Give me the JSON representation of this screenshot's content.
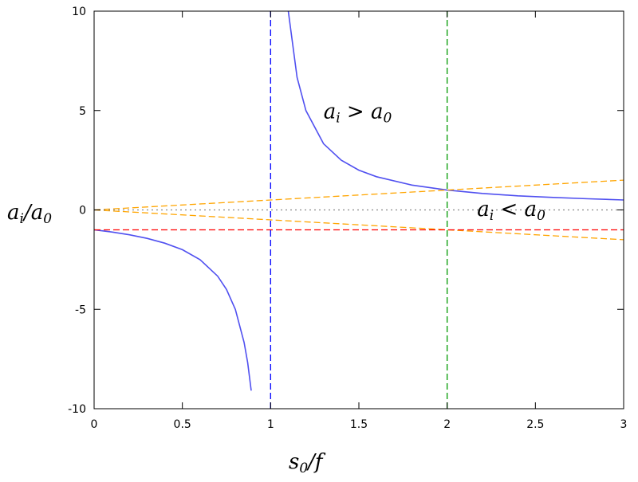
{
  "chart_data": {
    "type": "line",
    "xlim": [
      0,
      3
    ],
    "ylim": [
      -10,
      10
    ],
    "xticks": [
      0,
      0.5,
      1,
      1.5,
      2,
      2.5,
      3
    ],
    "yticks": [
      -10,
      -5,
      0,
      5,
      10
    ],
    "xtick_labels": [
      "0",
      "0.5",
      "1",
      "1.5",
      "2",
      "2.5",
      "3"
    ],
    "ytick_labels": [
      "-10",
      "-5",
      "0",
      "5",
      "10"
    ],
    "xlabel": {
      "base": "s",
      "sub": "0",
      "rest": "/f"
    },
    "ylabel": {
      "a": "a",
      "sub1": "i",
      "slash": "/a",
      "sub2": "0"
    },
    "grid": false,
    "legend": "none",
    "annotations": [
      {
        "base": "a",
        "sub": "i",
        "op": " > a",
        "sub2": "0",
        "x": 1.3,
        "y": 4.6
      },
      {
        "base": "a",
        "sub": "i",
        "op": " < a",
        "sub2": "0",
        "x": 2.17,
        "y": -0.3
      }
    ],
    "series": [
      {
        "style": "solid",
        "color": "#5050f0",
        "x": [
          0,
          0.1,
          0.2,
          0.3,
          0.4,
          0.5,
          0.6,
          0.7,
          0.75,
          0.8,
          0.85,
          0.87,
          0.89
        ],
        "y": [
          -1,
          -1.11,
          -1.25,
          -1.43,
          -1.67,
          -2,
          -2.5,
          -3.33,
          -4,
          -5,
          -6.67,
          -7.69,
          -9.09
        ]
      },
      {
        "style": "solid",
        "color": "#5050f0",
        "x": [
          1.1,
          1.15,
          1.2,
          1.3,
          1.4,
          1.5,
          1.6,
          1.8,
          2,
          2.2,
          2.4,
          2.6,
          2.8,
          3
        ],
        "y": [
          10,
          6.67,
          5,
          3.33,
          2.5,
          2,
          1.67,
          1.25,
          1,
          0.83,
          0.71,
          0.63,
          0.56,
          0.5
        ]
      },
      {
        "style": "dashed",
        "color": "#ffa500",
        "x": [
          0,
          3
        ],
        "y": [
          0,
          1.5
        ]
      },
      {
        "style": "dashed",
        "color": "#ffa500",
        "x": [
          0,
          3
        ],
        "y": [
          0,
          -1.5
        ]
      },
      {
        "style": "dashed",
        "color": "#ff0000",
        "x": [
          0,
          3
        ],
        "y": [
          -1,
          -1
        ]
      },
      {
        "style": "dotted",
        "color": "#888888",
        "x": [
          0,
          3
        ],
        "y": [
          0,
          0
        ]
      },
      {
        "style": "dashed",
        "color": "#0000ff",
        "x": [
          1,
          1
        ],
        "y": [
          -10,
          10
        ]
      },
      {
        "style": "dashed",
        "color": "#009900",
        "x": [
          2,
          2
        ],
        "y": [
          -10,
          10
        ]
      }
    ]
  }
}
